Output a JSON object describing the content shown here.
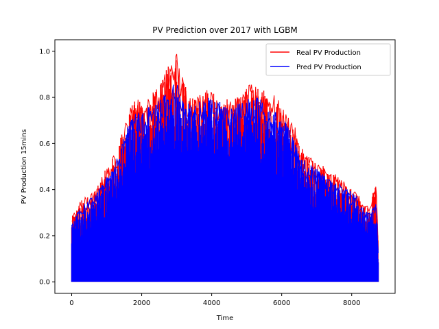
{
  "chart_data": {
    "type": "line",
    "title": "PV Prediction over 2017 with LGBM",
    "xlabel": "Time",
    "ylabel": "PV Production 15mins",
    "xlim": [
      -480,
      9240
    ],
    "ylim": [
      -0.05,
      1.05
    ],
    "xticks": [
      0,
      2000,
      4000,
      6000,
      8000
    ],
    "yticks": [
      0.0,
      0.2,
      0.4,
      0.6,
      0.8,
      1.0
    ],
    "grid": false,
    "legend_position": "top-right",
    "series": [
      {
        "name": "Real PV Production",
        "color": "#ff0000",
        "envelope": {
          "x": [
            0,
            150,
            300,
            500,
            700,
            900,
            1100,
            1300,
            1500,
            1700,
            1900,
            2100,
            2300,
            2500,
            2700,
            2900,
            3000,
            3100,
            3300,
            3500,
            3700,
            3900,
            4100,
            4300,
            4500,
            4700,
            4900,
            5100,
            5300,
            5500,
            5700,
            5900,
            6100,
            6300,
            6500,
            6700,
            6900,
            7100,
            7300,
            7500,
            7700,
            7900,
            8100,
            8300,
            8500,
            8700,
            8760
          ],
          "y": [
            0.28,
            0.33,
            0.36,
            0.38,
            0.4,
            0.47,
            0.52,
            0.58,
            0.68,
            0.77,
            0.8,
            0.79,
            0.82,
            0.85,
            0.92,
            0.99,
            1.0,
            0.93,
            0.84,
            0.8,
            0.83,
            0.84,
            0.82,
            0.82,
            0.78,
            0.8,
            0.82,
            0.86,
            0.85,
            0.84,
            0.83,
            0.79,
            0.74,
            0.72,
            0.6,
            0.56,
            0.54,
            0.52,
            0.48,
            0.47,
            0.45,
            0.42,
            0.4,
            0.35,
            0.32,
            0.45,
            0.15
          ]
        }
      },
      {
        "name": "Pred PV Production",
        "color": "#0000ff",
        "envelope": {
          "x": [
            0,
            150,
            300,
            500,
            700,
            900,
            1100,
            1300,
            1500,
            1700,
            1900,
            2100,
            2300,
            2500,
            2700,
            2900,
            3000,
            3100,
            3300,
            3500,
            3700,
            3900,
            4100,
            4300,
            4500,
            4700,
            4900,
            5100,
            5300,
            5500,
            5700,
            5900,
            6100,
            6300,
            6500,
            6700,
            6900,
            7100,
            7300,
            7500,
            7700,
            7900,
            8100,
            8300,
            8500,
            8700,
            8760
          ],
          "y": [
            0.25,
            0.3,
            0.33,
            0.36,
            0.38,
            0.44,
            0.48,
            0.54,
            0.64,
            0.72,
            0.74,
            0.74,
            0.78,
            0.8,
            0.84,
            0.86,
            0.87,
            0.84,
            0.8,
            0.77,
            0.79,
            0.8,
            0.78,
            0.78,
            0.75,
            0.77,
            0.78,
            0.8,
            0.8,
            0.79,
            0.76,
            0.73,
            0.7,
            0.64,
            0.56,
            0.52,
            0.5,
            0.48,
            0.45,
            0.44,
            0.42,
            0.4,
            0.38,
            0.33,
            0.3,
            0.35,
            0.14
          ]
        }
      }
    ]
  }
}
